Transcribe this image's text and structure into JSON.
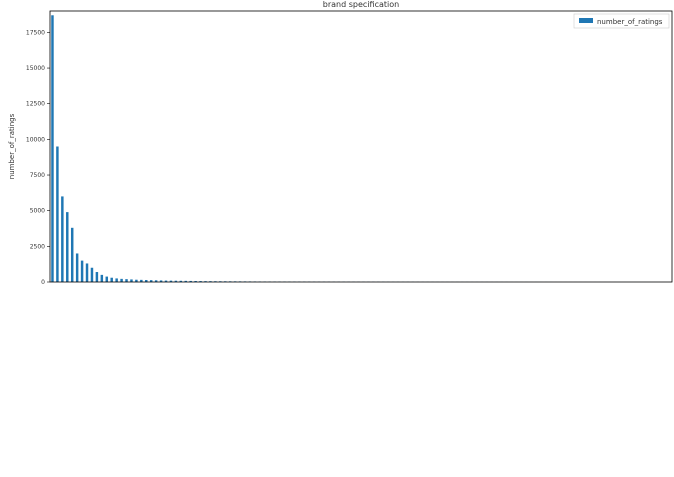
{
  "chart_data": {
    "type": "bar",
    "title": "brand specification",
    "xlabel": "",
    "ylabel": "number_of_ratings",
    "ylim": [
      0,
      19000
    ],
    "yticks": [
      0,
      2500,
      5000,
      7500,
      10000,
      12500,
      15000,
      17500
    ],
    "grid": false,
    "legend": {
      "position": "top-right"
    },
    "series": [
      {
        "name": "number_of_ratings",
        "color": "#1f77b4",
        "values": [
          18700,
          9500,
          6000,
          4900,
          3800,
          2000,
          1500,
          1300,
          1000,
          700,
          500,
          380,
          300,
          250,
          220,
          200,
          180,
          160,
          150,
          140,
          130,
          120,
          110,
          100,
          95,
          90,
          85,
          80,
          75,
          70,
          65,
          60,
          58,
          55,
          52,
          50,
          48,
          46,
          44,
          42,
          40,
          38,
          36,
          35,
          34,
          33,
          32,
          31,
          30,
          29,
          28,
          27,
          26,
          25,
          24,
          23,
          22,
          21,
          20,
          20,
          19,
          19,
          18,
          18,
          17,
          17,
          16,
          16,
          15,
          15,
          14,
          14,
          13,
          13,
          12,
          12,
          11,
          11,
          10,
          10,
          9,
          9,
          9,
          8,
          8,
          8,
          7,
          7,
          7,
          6,
          6,
          6,
          6,
          5,
          5,
          5,
          5,
          4,
          4,
          4,
          4,
          4,
          3,
          3,
          3,
          3,
          3,
          3,
          2,
          2,
          2,
          2,
          2,
          2,
          2,
          1,
          1,
          1,
          1,
          1,
          1,
          1,
          1,
          1,
          1,
          1
        ]
      }
    ]
  }
}
